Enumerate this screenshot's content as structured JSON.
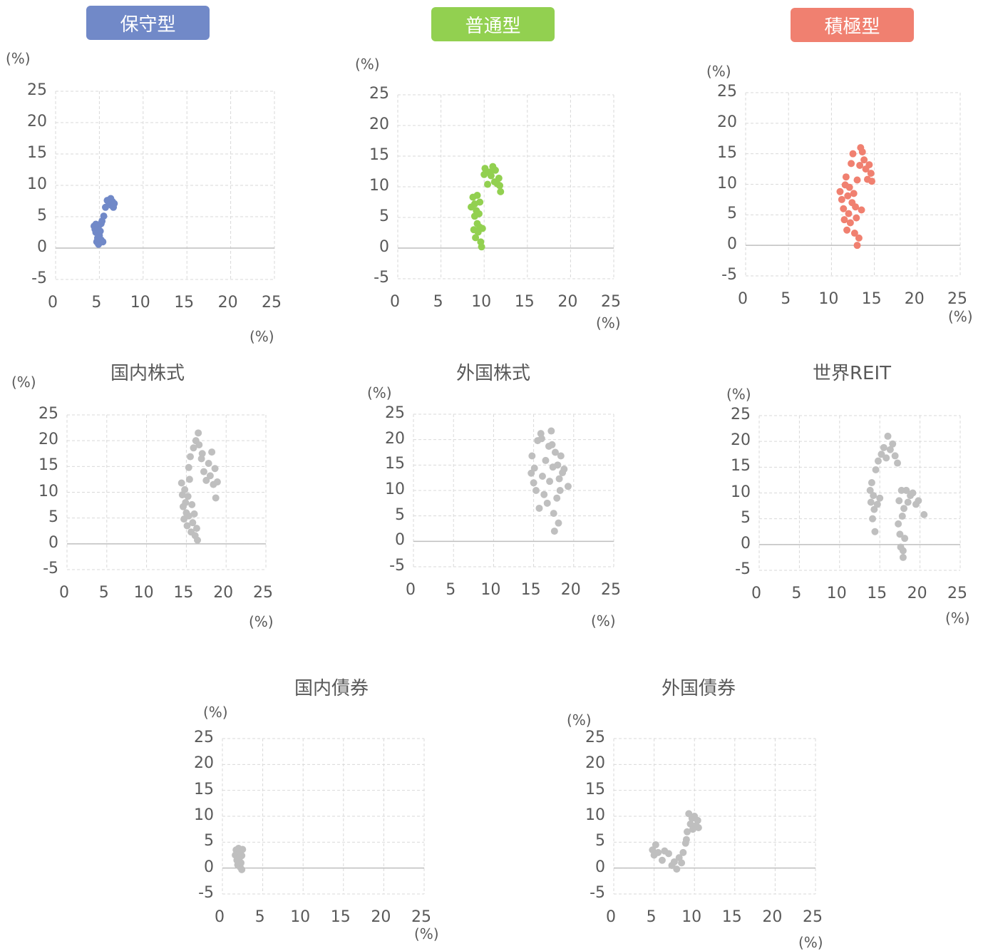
{
  "colors": {
    "conservative": "#7189c8",
    "standard": "#92d050",
    "aggressive": "#f08070",
    "asset": "#bfbfbf",
    "grid": "#d9d9d9",
    "zero_line": "#bfbfbf"
  },
  "chart_data": [
    {
      "id": "c0",
      "type": "scatter",
      "title": "保守型",
      "title_style": "badge",
      "ylabel_unit": "(%)",
      "xlabel_unit": "(%)",
      "xlim": [
        0,
        25
      ],
      "ylim": [
        -5,
        25
      ],
      "grid": true,
      "x_ticks": [
        "0",
        "5",
        "10",
        "15",
        "20",
        "25"
      ],
      "y_ticks": [
        "25",
        "20",
        "15",
        "10",
        "5",
        "0",
        "-5"
      ],
      "color_key": "conservative",
      "points": [
        [
          4.4,
          3.5
        ],
        [
          4.5,
          3.0
        ],
        [
          4.6,
          3.8
        ],
        [
          4.6,
          2.5
        ],
        [
          4.7,
          1.0
        ],
        [
          4.8,
          1.6
        ],
        [
          4.8,
          3.2
        ],
        [
          4.9,
          0.6
        ],
        [
          5.0,
          2.0
        ],
        [
          5.0,
          3.7
        ],
        [
          5.1,
          2.7
        ],
        [
          5.2,
          1.3
        ],
        [
          5.2,
          3.9
        ],
        [
          5.3,
          4.3
        ],
        [
          5.4,
          1.0
        ],
        [
          5.5,
          5.1
        ],
        [
          5.7,
          6.5
        ],
        [
          5.9,
          7.6
        ],
        [
          6.1,
          7.2
        ],
        [
          6.3,
          7.9
        ],
        [
          6.4,
          6.8
        ],
        [
          6.5,
          7.4
        ],
        [
          6.6,
          6.5
        ],
        [
          6.7,
          7.1
        ]
      ]
    },
    {
      "id": "c1",
      "type": "scatter",
      "title": "普通型",
      "title_style": "badge",
      "ylabel_unit": "(%)",
      "xlabel_unit": "(%)",
      "xlim": [
        0,
        25
      ],
      "ylim": [
        -5,
        25
      ],
      "grid": true,
      "x_ticks": [
        "0",
        "5",
        "10",
        "15",
        "20",
        "25"
      ],
      "y_ticks": [
        "25",
        "20",
        "15",
        "10",
        "5",
        "0",
        "-5"
      ],
      "color_key": "standard",
      "points": [
        [
          8.5,
          6.7
        ],
        [
          8.7,
          8.3
        ],
        [
          8.8,
          3.0
        ],
        [
          8.9,
          5.2
        ],
        [
          8.9,
          7.2
        ],
        [
          9.0,
          1.7
        ],
        [
          9.1,
          6.1
        ],
        [
          9.2,
          4.0
        ],
        [
          9.2,
          8.6
        ],
        [
          9.3,
          2.6
        ],
        [
          9.4,
          5.6
        ],
        [
          9.5,
          7.5
        ],
        [
          9.5,
          3.4
        ],
        [
          9.6,
          1.0
        ],
        [
          9.7,
          0.2
        ],
        [
          9.8,
          3.2
        ],
        [
          10.0,
          12.0
        ],
        [
          10.1,
          13.0
        ],
        [
          10.4,
          10.4
        ],
        [
          10.6,
          12.4
        ],
        [
          10.8,
          11.8
        ],
        [
          11.0,
          13.3
        ],
        [
          11.2,
          10.8
        ],
        [
          11.3,
          12.7
        ],
        [
          11.5,
          10.5
        ],
        [
          11.7,
          11.4
        ],
        [
          11.9,
          9.2
        ],
        [
          11.8,
          10.2
        ]
      ]
    },
    {
      "id": "c2",
      "type": "scatter",
      "title": "積極型",
      "title_style": "badge",
      "ylabel_unit": "(%)",
      "xlabel_unit": "(%)",
      "xlim": [
        0,
        25
      ],
      "ylim": [
        -5,
        25
      ],
      "grid": true,
      "x_ticks": [
        "0",
        "5",
        "10",
        "15",
        "20",
        "25"
      ],
      "y_ticks": [
        "25",
        "20",
        "15",
        "10",
        "5",
        "0",
        "-5"
      ],
      "color_key": "aggressive",
      "points": [
        [
          11.0,
          8.8
        ],
        [
          11.2,
          7.5
        ],
        [
          11.4,
          6.0
        ],
        [
          11.5,
          4.2
        ],
        [
          11.6,
          9.9
        ],
        [
          11.7,
          11.2
        ],
        [
          11.8,
          2.5
        ],
        [
          11.9,
          8.1
        ],
        [
          12.0,
          5.2
        ],
        [
          12.1,
          9.5
        ],
        [
          12.2,
          3.7
        ],
        [
          12.3,
          13.4
        ],
        [
          12.4,
          7.0
        ],
        [
          12.5,
          15.0
        ],
        [
          12.6,
          8.5
        ],
        [
          12.7,
          2.0
        ],
        [
          12.8,
          6.3
        ],
        [
          12.9,
          4.5
        ],
        [
          13.0,
          10.7
        ],
        [
          13.0,
          0.0
        ],
        [
          13.2,
          1.2
        ],
        [
          13.3,
          13.1
        ],
        [
          13.4,
          16.0
        ],
        [
          13.5,
          5.8
        ],
        [
          13.6,
          15.3
        ],
        [
          13.8,
          14.0
        ],
        [
          14.0,
          12.5
        ],
        [
          14.2,
          10.8
        ],
        [
          14.4,
          13.2
        ],
        [
          14.6,
          11.8
        ],
        [
          14.7,
          10.5
        ]
      ]
    },
    {
      "id": "c3",
      "type": "scatter",
      "title": "国内株式",
      "title_style": "text",
      "ylabel_unit": "(%)",
      "xlabel_unit": "(%)",
      "xlim": [
        0,
        25
      ],
      "ylim": [
        -5,
        25
      ],
      "grid": true,
      "x_ticks": [
        "0",
        "5",
        "10",
        "15",
        "20",
        "25"
      ],
      "y_ticks": [
        "25",
        "20",
        "15",
        "10",
        "5",
        "0",
        "-5"
      ],
      "color_key": "asset",
      "points": [
        [
          14.4,
          11.8
        ],
        [
          14.5,
          9.5
        ],
        [
          14.6,
          7.2
        ],
        [
          14.7,
          4.8
        ],
        [
          14.8,
          10.5
        ],
        [
          14.9,
          8.0
        ],
        [
          15.0,
          6.0
        ],
        [
          15.1,
          3.5
        ],
        [
          15.2,
          9.2
        ],
        [
          15.3,
          5.4
        ],
        [
          15.4,
          12.5
        ],
        [
          15.5,
          16.9
        ],
        [
          15.6,
          2.3
        ],
        [
          15.7,
          7.6
        ],
        [
          15.8,
          4.1
        ],
        [
          15.9,
          18.6
        ],
        [
          16.0,
          5.8
        ],
        [
          16.1,
          1.6
        ],
        [
          16.2,
          20.0
        ],
        [
          16.3,
          3.0
        ],
        [
          16.4,
          0.7
        ],
        [
          16.5,
          21.5
        ],
        [
          16.6,
          19.2
        ],
        [
          16.9,
          16.5
        ],
        [
          17.2,
          14.0
        ],
        [
          17.5,
          12.3
        ],
        [
          17.8,
          15.6
        ],
        [
          18.0,
          13.2
        ],
        [
          18.2,
          17.8
        ],
        [
          18.4,
          11.5
        ],
        [
          18.6,
          14.6
        ],
        [
          18.7,
          8.9
        ],
        [
          18.9,
          12.0
        ],
        [
          17.0,
          17.5
        ],
        [
          15.3,
          14.8
        ]
      ]
    },
    {
      "id": "c4",
      "type": "scatter",
      "title": "外国株式",
      "title_style": "text",
      "ylabel_unit": "(%)",
      "xlabel_unit": "(%)",
      "xlim": [
        0,
        25
      ],
      "ylim": [
        -5,
        25
      ],
      "grid": true,
      "x_ticks": [
        "0",
        "5",
        "10",
        "15",
        "20",
        "25"
      ],
      "y_ticks": [
        "25",
        "20",
        "15",
        "10",
        "5",
        "0",
        "-5"
      ],
      "color_key": "asset",
      "points": [
        [
          14.7,
          13.4
        ],
        [
          14.8,
          16.8
        ],
        [
          15.0,
          11.5
        ],
        [
          15.1,
          14.4
        ],
        [
          15.3,
          10.0
        ],
        [
          15.5,
          19.8
        ],
        [
          15.7,
          6.5
        ],
        [
          15.9,
          21.2
        ],
        [
          16.1,
          12.8
        ],
        [
          16.3,
          9.2
        ],
        [
          16.5,
          15.9
        ],
        [
          16.7,
          7.5
        ],
        [
          16.9,
          18.7
        ],
        [
          17.0,
          11.8
        ],
        [
          17.2,
          21.7
        ],
        [
          17.4,
          14.6
        ],
        [
          17.5,
          5.5
        ],
        [
          17.6,
          2.0
        ],
        [
          17.7,
          17.5
        ],
        [
          17.9,
          8.5
        ],
        [
          18.0,
          15.0
        ],
        [
          18.1,
          3.6
        ],
        [
          18.2,
          12.3
        ],
        [
          18.3,
          10.0
        ],
        [
          18.4,
          16.8
        ],
        [
          18.6,
          13.5
        ],
        [
          18.8,
          14.2
        ],
        [
          19.3,
          10.8
        ],
        [
          17.3,
          19.0
        ],
        [
          16.0,
          20.2
        ]
      ]
    },
    {
      "id": "c5",
      "type": "scatter",
      "title": "世界REIT",
      "title_style": "text",
      "ylabel_unit": "(%)",
      "xlabel_unit": "(%)",
      "xlim": [
        0,
        25
      ],
      "ylim": [
        -5,
        25
      ],
      "grid": true,
      "x_ticks": [
        "0",
        "5",
        "10",
        "15",
        "20",
        "25"
      ],
      "y_ticks": [
        "25",
        "20",
        "15",
        "10",
        "5",
        "0",
        "-5"
      ],
      "color_key": "asset",
      "points": [
        [
          13.8,
          10.5
        ],
        [
          13.9,
          8.2
        ],
        [
          14.0,
          12.0
        ],
        [
          14.1,
          5.0
        ],
        [
          14.2,
          9.5
        ],
        [
          14.3,
          6.8
        ],
        [
          14.4,
          2.5
        ],
        [
          14.5,
          14.5
        ],
        [
          14.7,
          7.8
        ],
        [
          14.8,
          16.2
        ],
        [
          15.0,
          9.0
        ],
        [
          15.2,
          17.5
        ],
        [
          15.5,
          18.8
        ],
        [
          15.8,
          16.8
        ],
        [
          16.0,
          21.0
        ],
        [
          16.3,
          18.4
        ],
        [
          16.6,
          19.5
        ],
        [
          16.9,
          17.2
        ],
        [
          17.2,
          15.8
        ],
        [
          17.4,
          8.5
        ],
        [
          17.5,
          2.0
        ],
        [
          17.6,
          -0.5
        ],
        [
          17.7,
          10.5
        ],
        [
          17.8,
          5.5
        ],
        [
          17.9,
          -2.5
        ],
        [
          18.0,
          7.0
        ],
        [
          18.1,
          1.2
        ],
        [
          18.3,
          10.5
        ],
        [
          18.5,
          8.2
        ],
        [
          18.8,
          9.5
        ],
        [
          19.1,
          10.0
        ],
        [
          19.5,
          7.8
        ],
        [
          19.8,
          8.5
        ],
        [
          20.5,
          5.8
        ],
        [
          17.3,
          4.0
        ],
        [
          17.9,
          -1.2
        ]
      ]
    },
    {
      "id": "c6",
      "type": "scatter",
      "title": "国内債券",
      "title_style": "text",
      "ylabel_unit": "(%)",
      "xlabel_unit": "(%)",
      "xlim": [
        0,
        25
      ],
      "ylim": [
        -5,
        25
      ],
      "grid": true,
      "x_ticks": [
        "0",
        "5",
        "10",
        "15",
        "20",
        "25"
      ],
      "y_ticks": [
        "25",
        "20",
        "15",
        "10",
        "5",
        "0",
        "-5"
      ],
      "color_key": "asset",
      "points": [
        [
          1.6,
          2.5
        ],
        [
          1.7,
          3.5
        ],
        [
          1.8,
          1.5
        ],
        [
          1.9,
          2.9
        ],
        [
          1.9,
          0.6
        ],
        [
          2.0,
          3.8
        ],
        [
          2.1,
          2.0
        ],
        [
          2.2,
          0.2
        ],
        [
          2.2,
          3.1
        ],
        [
          2.3,
          1.0
        ],
        [
          2.4,
          2.4
        ],
        [
          2.5,
          3.6
        ],
        [
          2.4,
          -0.3
        ],
        [
          2.1,
          1.4
        ]
      ]
    },
    {
      "id": "c7",
      "type": "scatter",
      "title": "外国債券",
      "title_style": "text",
      "ylabel_unit": "(%)",
      "xlabel_unit": "(%)",
      "xlim": [
        0,
        25
      ],
      "ylim": [
        -5,
        25
      ],
      "grid": true,
      "x_ticks": [
        "0",
        "5",
        "10",
        "15",
        "20",
        "25"
      ],
      "y_ticks": [
        "25",
        "20",
        "15",
        "10",
        "5",
        "0",
        "-5"
      ],
      "color_key": "asset",
      "points": [
        [
          4.8,
          3.5
        ],
        [
          5.0,
          2.5
        ],
        [
          5.2,
          4.5
        ],
        [
          5.5,
          3.0
        ],
        [
          6.0,
          1.5
        ],
        [
          6.3,
          3.3
        ],
        [
          6.8,
          2.8
        ],
        [
          7.2,
          0.5
        ],
        [
          7.5,
          1.2
        ],
        [
          7.8,
          -0.2
        ],
        [
          8.1,
          2.0
        ],
        [
          8.4,
          1.0
        ],
        [
          8.6,
          3.0
        ],
        [
          8.9,
          4.8
        ],
        [
          9.1,
          7.0
        ],
        [
          9.3,
          10.5
        ],
        [
          9.5,
          8.5
        ],
        [
          9.7,
          9.6
        ],
        [
          9.8,
          7.5
        ],
        [
          10.0,
          10.0
        ],
        [
          10.2,
          8.2
        ],
        [
          10.4,
          9.2
        ],
        [
          10.5,
          7.8
        ],
        [
          9.0,
          5.5
        ]
      ]
    }
  ]
}
